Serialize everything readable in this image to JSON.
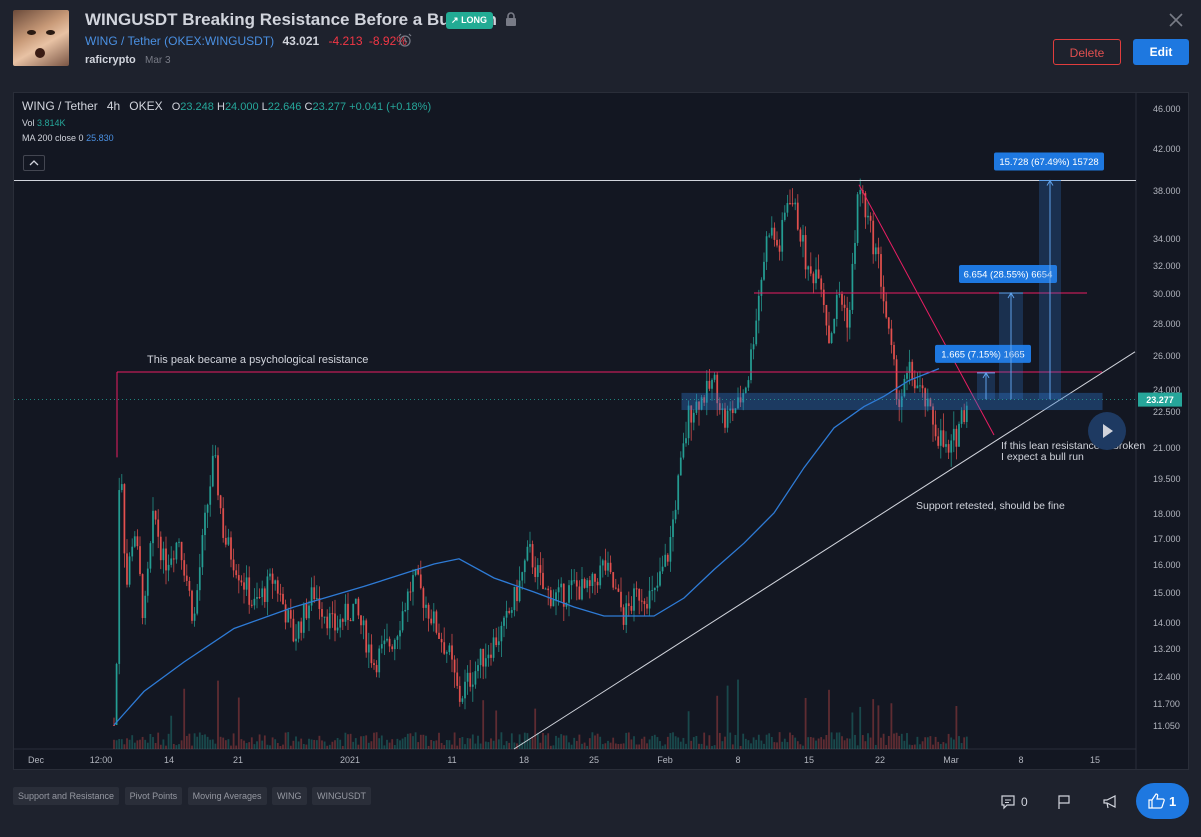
{
  "idea": {
    "title": "WINGUSDT Breaking Resistance Before a Bull Run",
    "badge": "LONG",
    "symbol_pair": "WING / Tether",
    "exchange_symbol": "OKEX:WINGUSDT",
    "price": "43.021",
    "change": "-4.213",
    "change_pct": "-8.92%",
    "author": "raficrypto",
    "date": "Mar 3"
  },
  "buttons": {
    "delete": "Delete",
    "edit": "Edit"
  },
  "legend": {
    "symbol": "WING / Tether",
    "interval": "4h",
    "exchange": "OKEX",
    "o_label": "O",
    "o": "23.248",
    "h_label": "H",
    "h": "24.000",
    "l_label": "L",
    "l": "22.646",
    "c_label": "C",
    "c": "23.277",
    "chg": "+0.041 (+0.18%)",
    "vol_label": "Vol",
    "vol": "3.814K",
    "ma_label": "MA 200 close 0",
    "ma": "25.830"
  },
  "price_axis": [
    "46.000",
    "42.000",
    "38.000",
    "34.000",
    "32.000",
    "30.000",
    "28.000",
    "26.000",
    "24.000",
    "22.500",
    "21.000",
    "19.500",
    "18.000",
    "17.000",
    "16.000",
    "15.000",
    "14.000",
    "13.200",
    "12.400",
    "11.700",
    "11.050"
  ],
  "last_price_tag": "23.277",
  "time_axis": [
    "Dec",
    "12:00",
    "14",
    "21",
    "2021",
    "11",
    "18",
    "25",
    "Feb",
    "8",
    "15",
    "22",
    "Mar",
    "8",
    "15"
  ],
  "annotations": {
    "peak_note": "This peak became a psychological resistance",
    "lean_note_1": "If this lean resistance is broken",
    "lean_note_2": "I expect a bull run",
    "support_note": "Support retested, should be fine",
    "target1": "1.665 (7.15%) 1665",
    "target2": "6.654 (28.55%) 6654",
    "target3": "15.728 (67.49%) 15728"
  },
  "tags": [
    "Support and Resistance",
    "Pivot Points",
    "Moving Averages",
    "WING",
    "WINGUSDT"
  ],
  "footer": {
    "comments": "0",
    "likes": "1"
  },
  "colors": {
    "up": "#26a69a",
    "down": "#ef5350",
    "ma": "#2e7bd6",
    "resistance": "#e91e63",
    "accent": "#1e78e0"
  },
  "icons": [
    "lock-icon",
    "alarm-icon",
    "close-icon",
    "comment-icon",
    "flag-icon",
    "megaphone-icon",
    "thumbs-up-icon",
    "play-icon",
    "trend-up-icon"
  ]
}
